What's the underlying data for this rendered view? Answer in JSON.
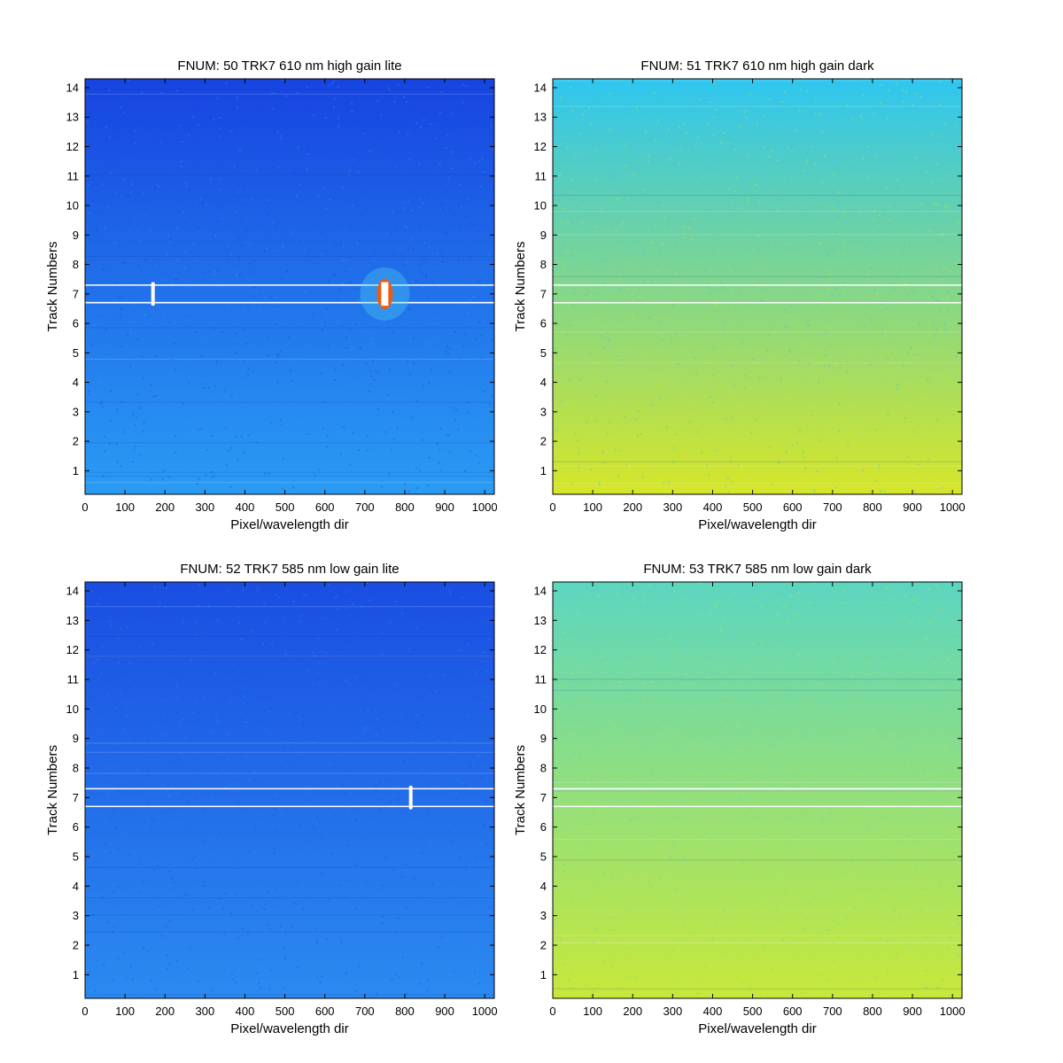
{
  "chart_data": [
    {
      "type": "heatmap",
      "title": "FNUM: 50 TRK7 610 nm high gain lite",
      "xlabel": "Pixel/wavelength dir",
      "ylabel": "Track Numbers",
      "xlim": [
        0,
        1024
      ],
      "ylim": [
        0.2,
        14.3
      ],
      "xticks": [
        0,
        100,
        200,
        300,
        400,
        500,
        600,
        700,
        800,
        900,
        1000
      ],
      "yticks": [
        1,
        2,
        3,
        4,
        5,
        6,
        7,
        8,
        9,
        10,
        11,
        12,
        13,
        14
      ],
      "colormap": "jet",
      "background_top": "#1744e0",
      "background_bottom": "#2a9cf4",
      "highlight_track_lines": [
        6.7,
        7.3
      ],
      "hot_spots": [
        {
          "x": 170,
          "y": 7.0,
          "height": 0.8,
          "kind": "line",
          "color": "#ffffff"
        },
        {
          "x": 750,
          "y": 7.0,
          "height": 0.8,
          "kind": "saturated",
          "color": "#ffffff"
        }
      ]
    },
    {
      "type": "heatmap",
      "title": "FNUM: 51 TRK7 610 nm high gain dark",
      "xlabel": "Pixel/wavelength dir",
      "ylabel": "Track Numbers",
      "xlim": [
        0,
        1024
      ],
      "ylim": [
        0.2,
        14.3
      ],
      "xticks": [
        0,
        100,
        200,
        300,
        400,
        500,
        600,
        700,
        800,
        900,
        1000
      ],
      "yticks": [
        1,
        2,
        3,
        4,
        5,
        6,
        7,
        8,
        9,
        10,
        11,
        12,
        13,
        14
      ],
      "colormap": "jet",
      "background_top": "#2ec6f0",
      "background_bottom": "#d6e628",
      "highlight_track_lines": [
        6.7,
        7.3
      ],
      "hot_spots": []
    },
    {
      "type": "heatmap",
      "title": "FNUM: 52 TRK7 585 nm low gain lite",
      "xlabel": "Pixel/wavelength dir",
      "ylabel": "Track Numbers",
      "xlim": [
        0,
        1024
      ],
      "ylim": [
        0.2,
        14.3
      ],
      "xticks": [
        0,
        100,
        200,
        300,
        400,
        500,
        600,
        700,
        800,
        900,
        1000
      ],
      "yticks": [
        1,
        2,
        3,
        4,
        5,
        6,
        7,
        8,
        9,
        10,
        11,
        12,
        13,
        14
      ],
      "colormap": "jet",
      "background_top": "#1a4ee2",
      "background_bottom": "#2b8af0",
      "highlight_track_lines": [
        6.7,
        7.3
      ],
      "hot_spots": [
        {
          "x": 815,
          "y": 7.0,
          "height": 0.8,
          "kind": "line",
          "color": "#ffffff"
        }
      ]
    },
    {
      "type": "heatmap",
      "title": "FNUM: 53 TRK7 585 nm low gain dark",
      "xlabel": "Pixel/wavelength dir",
      "ylabel": "Track Numbers",
      "xlim": [
        0,
        1024
      ],
      "ylim": [
        0.2,
        14.3
      ],
      "xticks": [
        0,
        100,
        200,
        300,
        400,
        500,
        600,
        700,
        800,
        900,
        1000
      ],
      "yticks": [
        1,
        2,
        3,
        4,
        5,
        6,
        7,
        8,
        9,
        10,
        11,
        12,
        13,
        14
      ],
      "colormap": "jet",
      "background_top": "#5cd6c0",
      "background_bottom": "#c8e83a",
      "highlight_track_lines": [
        6.7,
        7.3
      ],
      "hot_spots": []
    }
  ]
}
